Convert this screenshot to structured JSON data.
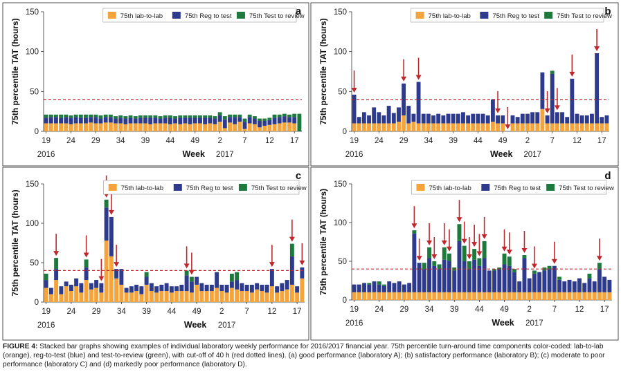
{
  "figure": {
    "caption_label": "FIGURE 4:",
    "caption_text": " Stacked bar graphs showing examples of individual laboratory weekly performance for 2016/2017 financial year. 75th percentile turn-around time components color-coded: lab-to-lab (orange), reg-to-test (blue) and test-to-review (green), with cut-off of 40 h (red dotted lines). (a) good performance (laboratory A); (b) satisfactory performance (laboratory B); (c) moderate to poor performance (laboratory C) and (d) markedly poor performance (laboratory D)."
  },
  "colors": {
    "lab_to_lab": "#f5a33b",
    "reg_to_test": "#2e3a8c",
    "test_to_review": "#1d7a3c",
    "cutoff": "#c0272d",
    "arrow": "#c0272d"
  },
  "chart_data": [
    {
      "panel": "a",
      "type": "bar",
      "stacked": true,
      "ylabel": "75th percentile TAT (hours)",
      "xlabel": "Week",
      "yticks": [
        0,
        50,
        100,
        150
      ],
      "ylim": [
        0,
        150
      ],
      "xtick_labels": [
        "19",
        "24",
        "29",
        "34",
        "39",
        "44",
        "49",
        "2",
        "7",
        "12",
        "17"
      ],
      "year_labels": [
        "2016",
        "2017"
      ],
      "legend": [
        "75th lab-to-lab",
        "75th Reg to test",
        "75th Test to review"
      ],
      "legend_position": "top-right",
      "cutoff": 40,
      "categories": [
        "19",
        "20",
        "21",
        "22",
        "23",
        "24",
        "25",
        "26",
        "27",
        "28",
        "29",
        "30",
        "31",
        "32",
        "33",
        "34",
        "35",
        "36",
        "37",
        "38",
        "39",
        "40",
        "41",
        "42",
        "43",
        "44",
        "45",
        "46",
        "47",
        "48",
        "49",
        "50",
        "51",
        "52",
        "1",
        "2",
        "3",
        "4",
        "5",
        "6",
        "7",
        "8",
        "9",
        "10",
        "11",
        "12",
        "13",
        "14",
        "15",
        "16",
        "17",
        "18"
      ],
      "series": [
        {
          "name": "75th lab-to-lab",
          "values": [
            10,
            10,
            10,
            10,
            10,
            9,
            10,
            10,
            10,
            11,
            10,
            10,
            11,
            11,
            10,
            10,
            9,
            10,
            10,
            10,
            10,
            9,
            10,
            10,
            10,
            9,
            10,
            9,
            10,
            9,
            10,
            10,
            9,
            10,
            9,
            12,
            4,
            11,
            9,
            12,
            3,
            10,
            9,
            5,
            7,
            8,
            9,
            10,
            11,
            11,
            10,
            0
          ]
        },
        {
          "name": "75th Reg to test",
          "values": [
            7,
            8,
            8,
            7,
            8,
            8,
            8,
            7,
            7,
            7,
            8,
            6,
            7,
            7,
            6,
            7,
            7,
            7,
            6,
            7,
            7,
            8,
            7,
            6,
            7,
            8,
            6,
            8,
            7,
            8,
            7,
            7,
            8,
            7,
            7,
            8,
            11,
            7,
            9,
            6,
            9,
            8,
            7,
            8,
            6,
            6,
            8,
            8,
            8,
            7,
            8,
            0
          ]
        },
        {
          "name": "75th Test to review",
          "values": [
            4,
            3,
            3,
            4,
            3,
            3,
            3,
            4,
            4,
            3,
            3,
            4,
            3,
            3,
            3,
            3,
            3,
            3,
            3,
            3,
            3,
            3,
            3,
            3,
            3,
            3,
            3,
            3,
            3,
            3,
            3,
            3,
            3,
            3,
            3,
            4,
            4,
            3,
            3,
            3,
            4,
            3,
            3,
            3,
            3,
            3,
            4,
            3,
            3,
            3,
            4,
            22
          ]
        }
      ],
      "arrows": []
    },
    {
      "panel": "b",
      "type": "bar",
      "stacked": true,
      "ylabel": "75th percentile TAT (hours)",
      "xlabel": "Week",
      "yticks": [
        0,
        50,
        100,
        150
      ],
      "ylim": [
        0,
        150
      ],
      "xtick_labels": [
        "19",
        "24",
        "29",
        "34",
        "39",
        "44",
        "49",
        "2",
        "7",
        "12",
        "17"
      ],
      "year_labels": [
        "2016",
        "2017"
      ],
      "legend": [
        "75th lab-to-lab",
        "75th Reg to test",
        "75th Test to review"
      ],
      "legend_position": "top-right",
      "cutoff": 40,
      "categories": [
        "19",
        "20",
        "21",
        "22",
        "23",
        "24",
        "25",
        "26",
        "27",
        "28",
        "29",
        "30",
        "31",
        "32",
        "33",
        "34",
        "35",
        "36",
        "37",
        "38",
        "39",
        "40",
        "41",
        "42",
        "43",
        "44",
        "45",
        "46",
        "47",
        "48",
        "49",
        "50",
        "51",
        "52",
        "1",
        "2",
        "3",
        "4",
        "5",
        "6",
        "7",
        "8",
        "9",
        "10",
        "11",
        "12",
        "13",
        "14",
        "15",
        "16",
        "17",
        "18"
      ],
      "series": [
        {
          "name": "75th lab-to-lab",
          "values": [
            10,
            10,
            10,
            10,
            10,
            10,
            10,
            10,
            10,
            12,
            20,
            10,
            12,
            10,
            10,
            10,
            10,
            10,
            10,
            10,
            10,
            10,
            10,
            10,
            10,
            10,
            10,
            10,
            12,
            10,
            10,
            0,
            10,
            10,
            10,
            10,
            10,
            10,
            28,
            10,
            10,
            10,
            10,
            10,
            10,
            10,
            10,
            10,
            10,
            10,
            10,
            10
          ]
        },
        {
          "name": "75th Reg to test",
          "values": [
            36,
            8,
            14,
            10,
            20,
            14,
            10,
            22,
            13,
            18,
            40,
            22,
            10,
            52,
            12,
            12,
            10,
            12,
            10,
            12,
            12,
            12,
            14,
            10,
            12,
            12,
            12,
            10,
            28,
            10,
            10,
            0,
            10,
            8,
            12,
            12,
            14,
            14,
            46,
            10,
            62,
            14,
            14,
            8,
            56,
            12,
            10,
            10,
            12,
            88,
            8,
            10
          ]
        },
        {
          "name": "75th Test to review",
          "values": [
            0,
            0,
            0,
            0,
            0,
            0,
            0,
            0,
            0,
            0,
            0,
            0,
            0,
            0,
            0,
            0,
            0,
            0,
            0,
            0,
            0,
            0,
            0,
            0,
            0,
            0,
            0,
            0,
            0,
            0,
            0,
            0,
            0,
            0,
            0,
            0,
            0,
            0,
            0,
            0,
            4,
            0,
            0,
            0,
            0,
            0,
            0,
            0,
            0,
            0,
            0,
            0
          ]
        }
      ],
      "arrows": [
        "19",
        "29",
        "32",
        "48",
        "50",
        "6",
        "8",
        "11",
        "16"
      ]
    },
    {
      "panel": "c",
      "type": "bar",
      "stacked": true,
      "ylabel": "75th percentile TAT (hours)",
      "xlabel": "Week",
      "yticks": [
        0,
        50,
        100,
        150
      ],
      "ylim": [
        0,
        150
      ],
      "xtick_labels": [
        "19",
        "24",
        "29",
        "34",
        "39",
        "44",
        "49",
        "2",
        "7",
        "12",
        "17"
      ],
      "year_labels": [
        "2016",
        "2017"
      ],
      "legend": [
        "75th lab-to-lab",
        "75th Reg to test",
        "75th Test to review"
      ],
      "legend_position": "top-right",
      "cutoff": 40,
      "categories": [
        "19",
        "20",
        "21",
        "22",
        "23",
        "24",
        "25",
        "26",
        "27",
        "28",
        "29",
        "30",
        "31",
        "32",
        "33",
        "34",
        "35",
        "36",
        "37",
        "38",
        "39",
        "40",
        "41",
        "42",
        "43",
        "44",
        "45",
        "46",
        "47",
        "48",
        "49",
        "50",
        "51",
        "52",
        "1",
        "2",
        "3",
        "4",
        "5",
        "6",
        "7",
        "8",
        "9",
        "10",
        "11",
        "12",
        "13",
        "14",
        "15",
        "16",
        "17",
        "18"
      ],
      "series": [
        {
          "name": "75th lab-to-lab",
          "values": [
            18,
            10,
            28,
            10,
            20,
            14,
            20,
            12,
            28,
            16,
            18,
            12,
            78,
            58,
            30,
            22,
            12,
            12,
            14,
            10,
            22,
            14,
            12,
            14,
            14,
            12,
            14,
            14,
            14,
            12,
            22,
            14,
            14,
            14,
            18,
            14,
            12,
            18,
            16,
            14,
            14,
            12,
            16,
            14,
            12,
            20,
            12,
            14,
            16,
            22,
            12,
            30
          ]
        },
        {
          "name": "75th Reg to test",
          "values": [
            10,
            8,
            14,
            10,
            6,
            8,
            10,
            12,
            16,
            8,
            10,
            12,
            42,
            50,
            12,
            20,
            6,
            8,
            8,
            10,
            10,
            10,
            8,
            8,
            10,
            8,
            6,
            8,
            20,
            14,
            10,
            10,
            8,
            8,
            20,
            8,
            10,
            8,
            12,
            10,
            8,
            10,
            8,
            8,
            10,
            22,
            8,
            10,
            12,
            36,
            8,
            14
          ]
        },
        {
          "name": "75th Test to review",
          "values": [
            8,
            0,
            14,
            0,
            0,
            0,
            0,
            0,
            10,
            0,
            0,
            0,
            10,
            0,
            0,
            0,
            0,
            0,
            0,
            0,
            6,
            0,
            0,
            0,
            0,
            0,
            0,
            0,
            6,
            6,
            0,
            0,
            0,
            0,
            0,
            0,
            0,
            10,
            10,
            0,
            0,
            0,
            0,
            0,
            0,
            0,
            0,
            0,
            0,
            16,
            0,
            0
          ]
        }
      ],
      "arrows": [
        "21",
        "27",
        "30",
        "31",
        "32",
        "33",
        "47",
        "48",
        "12",
        "16",
        "18"
      ]
    },
    {
      "panel": "d",
      "type": "bar",
      "stacked": true,
      "ylabel": "75th percentile TAT (hours)",
      "xlabel": "Week",
      "yticks": [
        0,
        50,
        100,
        150
      ],
      "ylim": [
        0,
        150
      ],
      "xtick_labels": [
        "19",
        "24",
        "29",
        "34",
        "39",
        "44",
        "49",
        "2",
        "7",
        "12",
        "17"
      ],
      "year_labels": [
        "2016",
        "2017"
      ],
      "legend": [
        "75th lab-to-lab",
        "75th Reg to test",
        "75th Test to review"
      ],
      "legend_position": "top-right",
      "cutoff": 40,
      "categories": [
        "19",
        "20",
        "21",
        "22",
        "23",
        "24",
        "25",
        "26",
        "27",
        "28",
        "29",
        "30",
        "31",
        "32",
        "33",
        "34",
        "35",
        "36",
        "37",
        "38",
        "39",
        "40",
        "41",
        "42",
        "43",
        "44",
        "45",
        "46",
        "47",
        "48",
        "49",
        "50",
        "51",
        "52",
        "1",
        "2",
        "3",
        "4",
        "5",
        "6",
        "7",
        "8",
        "9",
        "10",
        "11",
        "12",
        "13",
        "14",
        "15",
        "16",
        "17",
        "18"
      ],
      "series": [
        {
          "name": "75th lab-to-lab",
          "values": [
            10,
            10,
            10,
            10,
            10,
            10,
            10,
            10,
            10,
            10,
            10,
            10,
            10,
            10,
            10,
            10,
            10,
            10,
            10,
            10,
            10,
            10,
            10,
            10,
            10,
            10,
            10,
            10,
            10,
            10,
            10,
            10,
            10,
            10,
            10,
            10,
            10,
            10,
            10,
            10,
            10,
            10,
            10,
            10,
            10,
            10,
            10,
            10,
            10,
            10,
            10,
            10
          ]
        },
        {
          "name": "75th Reg to test",
          "values": [
            10,
            10,
            12,
            10,
            14,
            10,
            8,
            14,
            12,
            14,
            10,
            12,
            76,
            38,
            30,
            44,
            34,
            30,
            42,
            40,
            28,
            66,
            40,
            30,
            42,
            34,
            44,
            28,
            28,
            30,
            36,
            34,
            26,
            14,
            44,
            18,
            24,
            26,
            28,
            30,
            34,
            16,
            14,
            16,
            14,
            18,
            12,
            18,
            14,
            30,
            20,
            16
          ]
        },
        {
          "name": "75th Test to review",
          "values": [
            0,
            0,
            0,
            2,
            0,
            4,
            2,
            0,
            0,
            0,
            0,
            0,
            4,
            0,
            8,
            14,
            6,
            6,
            16,
            10,
            4,
            22,
            20,
            10,
            14,
            10,
            22,
            0,
            2,
            2,
            14,
            12,
            4,
            0,
            4,
            0,
            4,
            0,
            4,
            4,
            0,
            4,
            0,
            0,
            0,
            0,
            0,
            6,
            0,
            8,
            0,
            0
          ]
        }
      ],
      "arrows": [
        "31",
        "32",
        "34",
        "35",
        "37",
        "38",
        "40",
        "41",
        "42",
        "43",
        "44",
        "45",
        "49",
        "50",
        "1",
        "3",
        "7",
        "16"
      ]
    }
  ]
}
